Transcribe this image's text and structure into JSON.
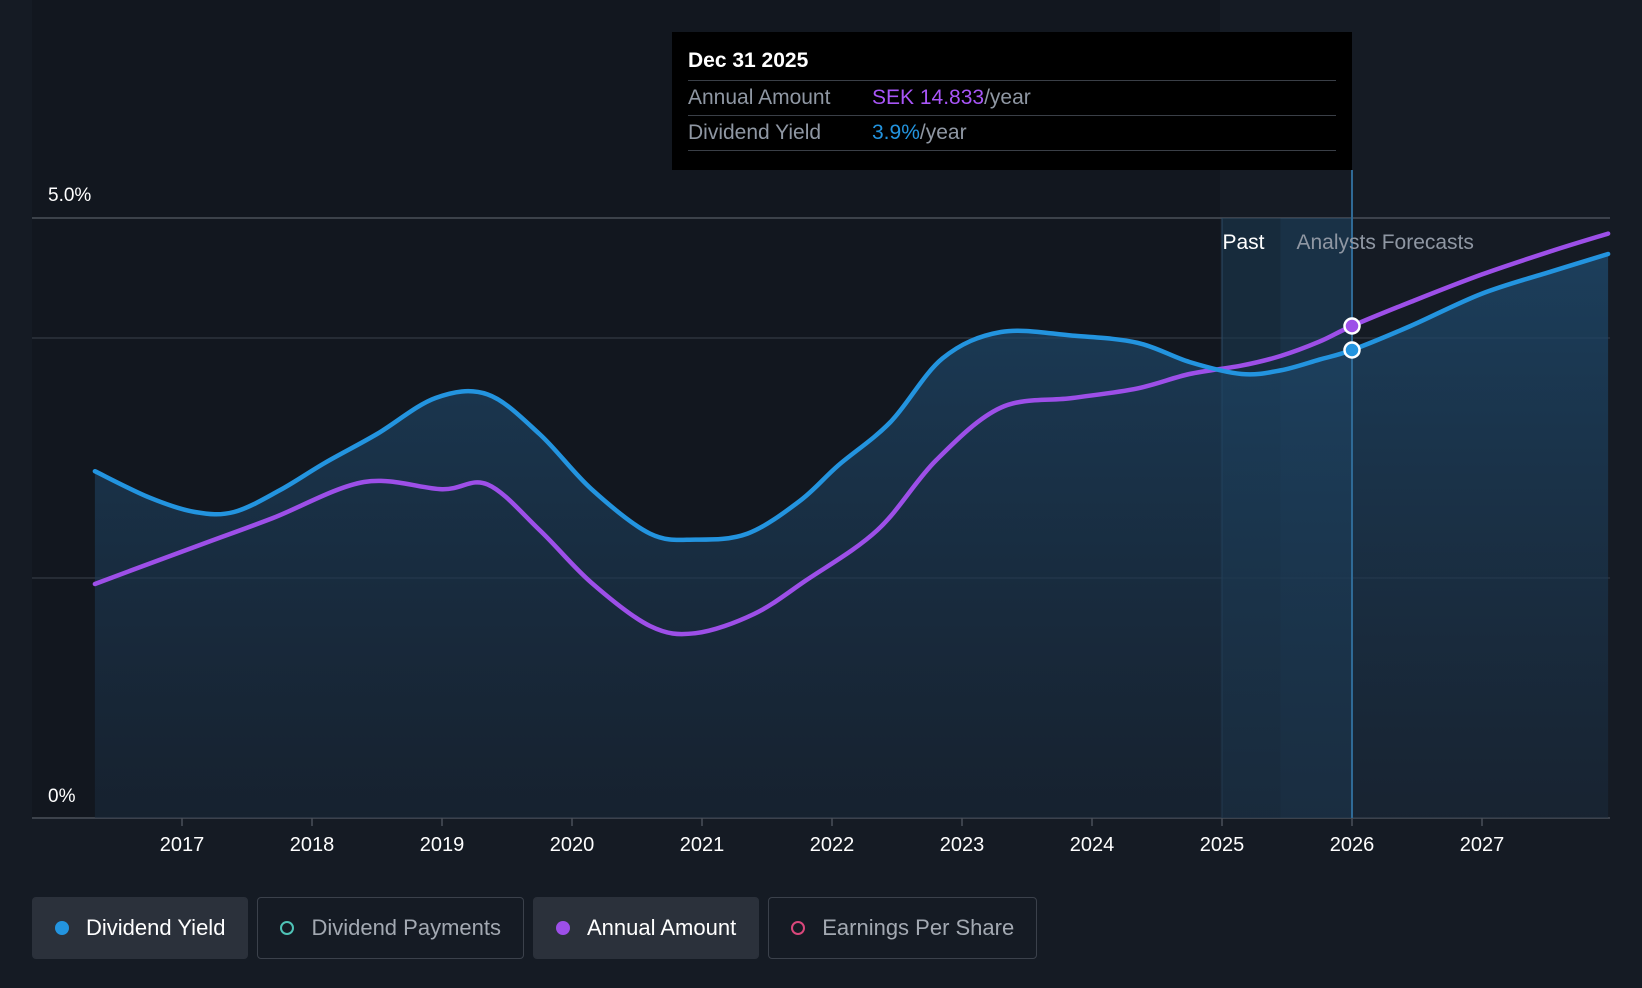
{
  "chart_data": {
    "type": "line",
    "x_ticks": [
      "2017",
      "2018",
      "2019",
      "2020",
      "2021",
      "2022",
      "2023",
      "2024",
      "2025",
      "2026",
      "2027"
    ],
    "y_ticks": [
      "5.0%",
      "0%"
    ],
    "ylim": [
      0,
      5.0
    ],
    "grid": true,
    "regions": {
      "past": "Past",
      "forecast": "Analysts Forecasts"
    },
    "series": [
      {
        "name": "Dividend Yield",
        "color": "#2394df",
        "x": [
          2016.33,
          2016.75,
          2017.1,
          2017.4,
          2017.75,
          2018.1,
          2018.5,
          2018.95,
          2019.35,
          2019.75,
          2020.15,
          2020.6,
          2020.95,
          2021.35,
          2021.75,
          2022.05,
          2022.45,
          2022.85,
          2023.3,
          2023.85,
          2024.35,
          2024.75,
          2025.15,
          2025.45,
          2025.75,
          2026.0,
          2026.45,
          2027.0,
          2027.55,
          2027.97
        ],
        "values": [
          2.89,
          2.67,
          2.55,
          2.55,
          2.73,
          2.96,
          3.2,
          3.5,
          3.53,
          3.2,
          2.74,
          2.37,
          2.32,
          2.37,
          2.64,
          2.94,
          3.3,
          3.83,
          4.05,
          4.02,
          3.96,
          3.8,
          3.7,
          3.73,
          3.82,
          3.9,
          4.1,
          4.37,
          4.56,
          4.7
        ]
      },
      {
        "name": "Annual Amount",
        "color": "#9d4fe8",
        "x": [
          2016.33,
          2016.75,
          2017.2,
          2017.7,
          2018.4,
          2019.0,
          2019.35,
          2019.75,
          2020.15,
          2020.6,
          2020.95,
          2021.4,
          2021.8,
          2022.35,
          2022.8,
          2023.3,
          2023.85,
          2024.35,
          2024.75,
          2025.15,
          2025.45,
          2025.75,
          2026.0,
          2026.45,
          2027.0,
          2027.55,
          2027.97
        ],
        "values": [
          1.95,
          2.12,
          2.3,
          2.5,
          2.8,
          2.74,
          2.78,
          2.4,
          1.96,
          1.6,
          1.54,
          1.7,
          1.98,
          2.4,
          2.98,
          3.42,
          3.5,
          3.58,
          3.7,
          3.77,
          3.85,
          3.97,
          4.1,
          4.3,
          4.53,
          4.73,
          4.87
        ]
      }
    ],
    "tooltip": {
      "date": "Dec 31 2025",
      "rows": [
        {
          "label": "Annual Amount",
          "value": "SEK 14.833",
          "unit": "/year",
          "color": "#a855f7"
        },
        {
          "label": "Dividend Yield",
          "value": "3.9%",
          "unit": "/year",
          "color": "#2394df"
        }
      ]
    }
  },
  "legend": [
    {
      "label": "Dividend Yield",
      "active": true,
      "dot_color": "#2394df",
      "hollow": false
    },
    {
      "label": "Dividend Payments",
      "active": false,
      "dot_color": "#4fc3b7",
      "hollow": true
    },
    {
      "label": "Annual Amount",
      "active": true,
      "dot_color": "#9d4fe8",
      "hollow": false
    },
    {
      "label": "Earnings Per Share",
      "active": false,
      "dot_color": "#d9477b",
      "hollow": true
    }
  ]
}
